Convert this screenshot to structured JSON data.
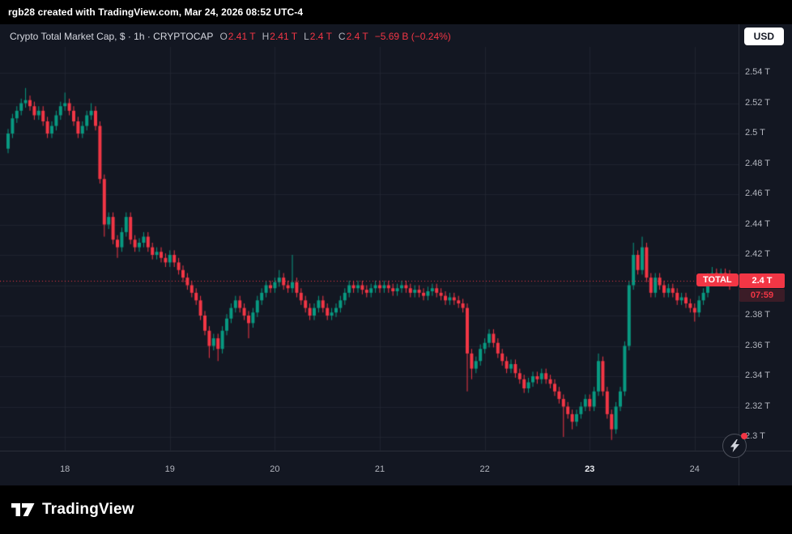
{
  "attribution": {
    "text": "rgb28 created with TradingView.com, Mar 24, 2026 08:52 UTC-4"
  },
  "legend": {
    "title": "Crypto Total Market Cap, $ · 1h · CRYPTOCAP",
    "o_label": "O",
    "o_value": "2.41 T",
    "h_label": "H",
    "h_value": "2.41 T",
    "l_label": "L",
    "l_value": "2.4 T",
    "c_label": "C",
    "c_value": "2.4 T",
    "change_value": "−5.69 B (−0.24%)"
  },
  "currency_button": {
    "label": "USD"
  },
  "price_label": {
    "symbol": "TOTAL",
    "price": "2.4 T",
    "countdown": "07:59"
  },
  "branding": {
    "wordmark": "TradingView"
  },
  "colors": {
    "background": "#131722",
    "up": "#089981",
    "down": "#f23645",
    "grid": "rgba(42,46,57,0.55)",
    "axis_text": "#b2b5be",
    "accent_red": "#f23645"
  },
  "chart_data": {
    "type": "candlestick",
    "title": "Crypto Total Market Cap",
    "symbol": "CRYPTOCAP:TOTAL",
    "interval": "1h",
    "currency": "USD",
    "unit": "trillion USD",
    "ylim": [
      2.29,
      2.556
    ],
    "legend_position": "top-left",
    "grid": true,
    "current_bar": {
      "open": 2.41,
      "high": 2.41,
      "low": 2.4,
      "close": 2.4,
      "change_abs": "−5.69 B",
      "change_pct": "−0.24%"
    },
    "last_price_line": {
      "value": 2.403,
      "style": "dotted",
      "color": "#f23645"
    },
    "y_ticks": [
      {
        "value": 2.54,
        "label": "2.54 T"
      },
      {
        "value": 2.52,
        "label": "2.52 T"
      },
      {
        "value": 2.5,
        "label": "2.5 T"
      },
      {
        "value": 2.48,
        "label": "2.48 T"
      },
      {
        "value": 2.46,
        "label": "2.46 T"
      },
      {
        "value": 2.44,
        "label": "2.44 T"
      },
      {
        "value": 2.42,
        "label": "2.42 T"
      },
      {
        "value": 2.4,
        "label": "2.4 T"
      },
      {
        "value": 2.38,
        "label": "2.38 T"
      },
      {
        "value": 2.36,
        "label": "2.36 T"
      },
      {
        "value": 2.34,
        "label": "2.34 T"
      },
      {
        "value": 2.32,
        "label": "2.32 T"
      },
      {
        "value": 2.3,
        "label": "2.3 T"
      }
    ],
    "x_ticks": [
      {
        "label": "18",
        "index": 13,
        "bold": false
      },
      {
        "label": "19",
        "index": 37,
        "bold": false
      },
      {
        "label": "20",
        "index": 61,
        "bold": false
      },
      {
        "label": "21",
        "index": 85,
        "bold": false
      },
      {
        "label": "22",
        "index": 109,
        "bold": false
      },
      {
        "label": "23",
        "index": 133,
        "bold": true
      },
      {
        "label": "24",
        "index": 157,
        "bold": false
      }
    ],
    "candles": [
      [
        2.49,
        2.503,
        2.487,
        2.5
      ],
      [
        2.5,
        2.513,
        2.497,
        2.51
      ],
      [
        2.51,
        2.518,
        2.507,
        2.515
      ],
      [
        2.515,
        2.523,
        2.512,
        2.52
      ],
      [
        2.52,
        2.53,
        2.517,
        2.522
      ],
      [
        2.522,
        2.525,
        2.515,
        2.518
      ],
      [
        2.518,
        2.521,
        2.509,
        2.512
      ],
      [
        2.512,
        2.518,
        2.509,
        2.515
      ],
      [
        2.515,
        2.518,
        2.505,
        2.508
      ],
      [
        2.508,
        2.511,
        2.497,
        2.5
      ],
      [
        2.5,
        2.508,
        2.497,
        2.505
      ],
      [
        2.505,
        2.515,
        2.502,
        2.512
      ],
      [
        2.512,
        2.521,
        2.509,
        2.518
      ],
      [
        2.518,
        2.527,
        2.515,
        2.52
      ],
      [
        2.52,
        2.523,
        2.512,
        2.515
      ],
      [
        2.515,
        2.518,
        2.505,
        2.508
      ],
      [
        2.508,
        2.511,
        2.497,
        2.5
      ],
      [
        2.5,
        2.508,
        2.497,
        2.505
      ],
      [
        2.505,
        2.515,
        2.502,
        2.512
      ],
      [
        2.512,
        2.52,
        2.509,
        2.515
      ],
      [
        2.515,
        2.518,
        2.502,
        2.505
      ],
      [
        2.505,
        2.508,
        2.467,
        2.47
      ],
      [
        2.47,
        2.473,
        2.432,
        2.44
      ],
      [
        2.44,
        2.448,
        2.437,
        2.445
      ],
      [
        2.445,
        2.448,
        2.427,
        2.43
      ],
      [
        2.43,
        2.433,
        2.418,
        2.425
      ],
      [
        2.425,
        2.438,
        2.422,
        2.435
      ],
      [
        2.435,
        2.448,
        2.432,
        2.445
      ],
      [
        2.445,
        2.448,
        2.427,
        2.43
      ],
      [
        2.43,
        2.433,
        2.422,
        2.425
      ],
      [
        2.425,
        2.431,
        2.422,
        2.428
      ],
      [
        2.428,
        2.435,
        2.425,
        2.432
      ],
      [
        2.432,
        2.435,
        2.422,
        2.425
      ],
      [
        2.425,
        2.428,
        2.417,
        2.42
      ],
      [
        2.42,
        2.425,
        2.417,
        2.422
      ],
      [
        2.422,
        2.425,
        2.415,
        2.418
      ],
      [
        2.418,
        2.421,
        2.412,
        2.415
      ],
      [
        2.415,
        2.423,
        2.412,
        2.42
      ],
      [
        2.42,
        2.423,
        2.412,
        2.415
      ],
      [
        2.415,
        2.418,
        2.407,
        2.41
      ],
      [
        2.41,
        2.413,
        2.402,
        2.405
      ],
      [
        2.405,
        2.408,
        2.397,
        2.4
      ],
      [
        2.4,
        2.403,
        2.392,
        2.395
      ],
      [
        2.395,
        2.398,
        2.387,
        2.39
      ],
      [
        2.39,
        2.393,
        2.377,
        2.38
      ],
      [
        2.38,
        2.383,
        2.367,
        2.37
      ],
      [
        2.37,
        2.373,
        2.352,
        2.36
      ],
      [
        2.36,
        2.368,
        2.357,
        2.365
      ],
      [
        2.365,
        2.368,
        2.35,
        2.358
      ],
      [
        2.358,
        2.373,
        2.355,
        2.37
      ],
      [
        2.37,
        2.381,
        2.367,
        2.378
      ],
      [
        2.378,
        2.388,
        2.375,
        2.385
      ],
      [
        2.385,
        2.393,
        2.382,
        2.39
      ],
      [
        2.39,
        2.393,
        2.382,
        2.385
      ],
      [
        2.385,
        2.388,
        2.377,
        2.38
      ],
      [
        2.38,
        2.383,
        2.365,
        2.375
      ],
      [
        2.375,
        2.385,
        2.372,
        2.382
      ],
      [
        2.382,
        2.393,
        2.379,
        2.39
      ],
      [
        2.39,
        2.398,
        2.387,
        2.395
      ],
      [
        2.395,
        2.403,
        2.392,
        2.4
      ],
      [
        2.4,
        2.403,
        2.395,
        2.398
      ],
      [
        2.398,
        2.405,
        2.395,
        2.402
      ],
      [
        2.402,
        2.41,
        2.399,
        2.405
      ],
      [
        2.405,
        2.408,
        2.397,
        2.4
      ],
      [
        2.4,
        2.403,
        2.395,
        2.398
      ],
      [
        2.398,
        2.42,
        2.395,
        2.402
      ],
      [
        2.402,
        2.405,
        2.392,
        2.395
      ],
      [
        2.395,
        2.398,
        2.387,
        2.39
      ],
      [
        2.39,
        2.393,
        2.382,
        2.385
      ],
      [
        2.385,
        2.388,
        2.377,
        2.38
      ],
      [
        2.38,
        2.388,
        2.377,
        2.385
      ],
      [
        2.385,
        2.393,
        2.382,
        2.39
      ],
      [
        2.39,
        2.393,
        2.382,
        2.385
      ],
      [
        2.385,
        2.388,
        2.377,
        2.38
      ],
      [
        2.38,
        2.385,
        2.377,
        2.382
      ],
      [
        2.382,
        2.388,
        2.379,
        2.385
      ],
      [
        2.385,
        2.393,
        2.382,
        2.39
      ],
      [
        2.39,
        2.398,
        2.387,
        2.395
      ],
      [
        2.395,
        2.403,
        2.392,
        2.4
      ],
      [
        2.4,
        2.403,
        2.395,
        2.398
      ],
      [
        2.398,
        2.403,
        2.395,
        2.4
      ],
      [
        2.4,
        2.403,
        2.394,
        2.397
      ],
      [
        2.397,
        2.4,
        2.392,
        2.395
      ],
      [
        2.395,
        2.401,
        2.392,
        2.398
      ],
      [
        2.398,
        2.403,
        2.395,
        2.4
      ],
      [
        2.4,
        2.403,
        2.395,
        2.398
      ],
      [
        2.398,
        2.403,
        2.395,
        2.4
      ],
      [
        2.4,
        2.403,
        2.395,
        2.398
      ],
      [
        2.398,
        2.401,
        2.393,
        2.396
      ],
      [
        2.396,
        2.401,
        2.393,
        2.398
      ],
      [
        2.398,
        2.403,
        2.395,
        2.4
      ],
      [
        2.4,
        2.403,
        2.395,
        2.398
      ],
      [
        2.398,
        2.401,
        2.392,
        2.395
      ],
      [
        2.395,
        2.4,
        2.392,
        2.397
      ],
      [
        2.397,
        2.4,
        2.392,
        2.395
      ],
      [
        2.395,
        2.398,
        2.39,
        2.393
      ],
      [
        2.393,
        2.399,
        2.39,
        2.396
      ],
      [
        2.396,
        2.401,
        2.393,
        2.398
      ],
      [
        2.398,
        2.401,
        2.392,
        2.395
      ],
      [
        2.395,
        2.398,
        2.39,
        2.393
      ],
      [
        2.393,
        2.396,
        2.387,
        2.39
      ],
      [
        2.39,
        2.395,
        2.387,
        2.392
      ],
      [
        2.392,
        2.395,
        2.387,
        2.39
      ],
      [
        2.39,
        2.393,
        2.385,
        2.388
      ],
      [
        2.388,
        2.391,
        2.382,
        2.385
      ],
      [
        2.385,
        2.388,
        2.33,
        2.355
      ],
      [
        2.355,
        2.358,
        2.338,
        2.345
      ],
      [
        2.345,
        2.353,
        2.342,
        2.35
      ],
      [
        2.35,
        2.361,
        2.347,
        2.358
      ],
      [
        2.358,
        2.365,
        2.355,
        2.362
      ],
      [
        2.362,
        2.371,
        2.359,
        2.368
      ],
      [
        2.368,
        2.371,
        2.359,
        2.362
      ],
      [
        2.362,
        2.365,
        2.352,
        2.355
      ],
      [
        2.355,
        2.358,
        2.347,
        2.35
      ],
      [
        2.35,
        2.353,
        2.342,
        2.345
      ],
      [
        2.345,
        2.351,
        2.342,
        2.348
      ],
      [
        2.348,
        2.351,
        2.339,
        2.342
      ],
      [
        2.342,
        2.345,
        2.335,
        2.338
      ],
      [
        2.338,
        2.341,
        2.329,
        2.332
      ],
      [
        2.332,
        2.339,
        2.329,
        2.336
      ],
      [
        2.336,
        2.343,
        2.333,
        2.34
      ],
      [
        2.34,
        2.343,
        2.335,
        2.338
      ],
      [
        2.338,
        2.345,
        2.335,
        2.342
      ],
      [
        2.342,
        2.345,
        2.335,
        2.338
      ],
      [
        2.338,
        2.341,
        2.332,
        2.335
      ],
      [
        2.335,
        2.338,
        2.327,
        2.33
      ],
      [
        2.33,
        2.333,
        2.322,
        2.325
      ],
      [
        2.325,
        2.328,
        2.3,
        2.32
      ],
      [
        2.32,
        2.323,
        2.312,
        2.315
      ],
      [
        2.315,
        2.318,
        2.305,
        2.31
      ],
      [
        2.31,
        2.318,
        2.307,
        2.315
      ],
      [
        2.315,
        2.323,
        2.312,
        2.32
      ],
      [
        2.32,
        2.328,
        2.317,
        2.325
      ],
      [
        2.325,
        2.328,
        2.317,
        2.32
      ],
      [
        2.32,
        2.333,
        2.317,
        2.33
      ],
      [
        2.33,
        2.355,
        2.327,
        2.35
      ],
      [
        2.35,
        2.353,
        2.327,
        2.33
      ],
      [
        2.33,
        2.333,
        2.312,
        2.315
      ],
      [
        2.315,
        2.318,
        2.298,
        2.305
      ],
      [
        2.305,
        2.323,
        2.302,
        2.32
      ],
      [
        2.32,
        2.333,
        2.317,
        2.33
      ],
      [
        2.33,
        2.363,
        2.327,
        2.36
      ],
      [
        2.36,
        2.403,
        2.357,
        2.4
      ],
      [
        2.4,
        2.428,
        2.397,
        2.42
      ],
      [
        2.42,
        2.423,
        2.407,
        2.41
      ],
      [
        2.41,
        2.432,
        2.407,
        2.425
      ],
      [
        2.425,
        2.428,
        2.402,
        2.405
      ],
      [
        2.405,
        2.408,
        2.392,
        2.395
      ],
      [
        2.395,
        2.408,
        2.392,
        2.405
      ],
      [
        2.405,
        2.408,
        2.397,
        2.4
      ],
      [
        2.4,
        2.403,
        2.392,
        2.395
      ],
      [
        2.395,
        2.401,
        2.392,
        2.398
      ],
      [
        2.398,
        2.401,
        2.392,
        2.395
      ],
      [
        2.395,
        2.398,
        2.387,
        2.39
      ],
      [
        2.39,
        2.395,
        2.387,
        2.392
      ],
      [
        2.392,
        2.395,
        2.385,
        2.388
      ],
      [
        2.388,
        2.391,
        2.382,
        2.385
      ],
      [
        2.385,
        2.388,
        2.376,
        2.382
      ],
      [
        2.382,
        2.393,
        2.379,
        2.39
      ],
      [
        2.39,
        2.398,
        2.387,
        2.395
      ],
      [
        2.395,
        2.408,
        2.392,
        2.405
      ],
      [
        2.405,
        2.412,
        2.402,
        2.408
      ],
      [
        2.408,
        2.411,
        2.402,
        2.405
      ],
      [
        2.405,
        2.411,
        2.402,
        2.408
      ],
      [
        2.408,
        2.411,
        2.4,
        2.403
      ],
      [
        2.403,
        2.41,
        2.397,
        2.4
      ]
    ]
  }
}
